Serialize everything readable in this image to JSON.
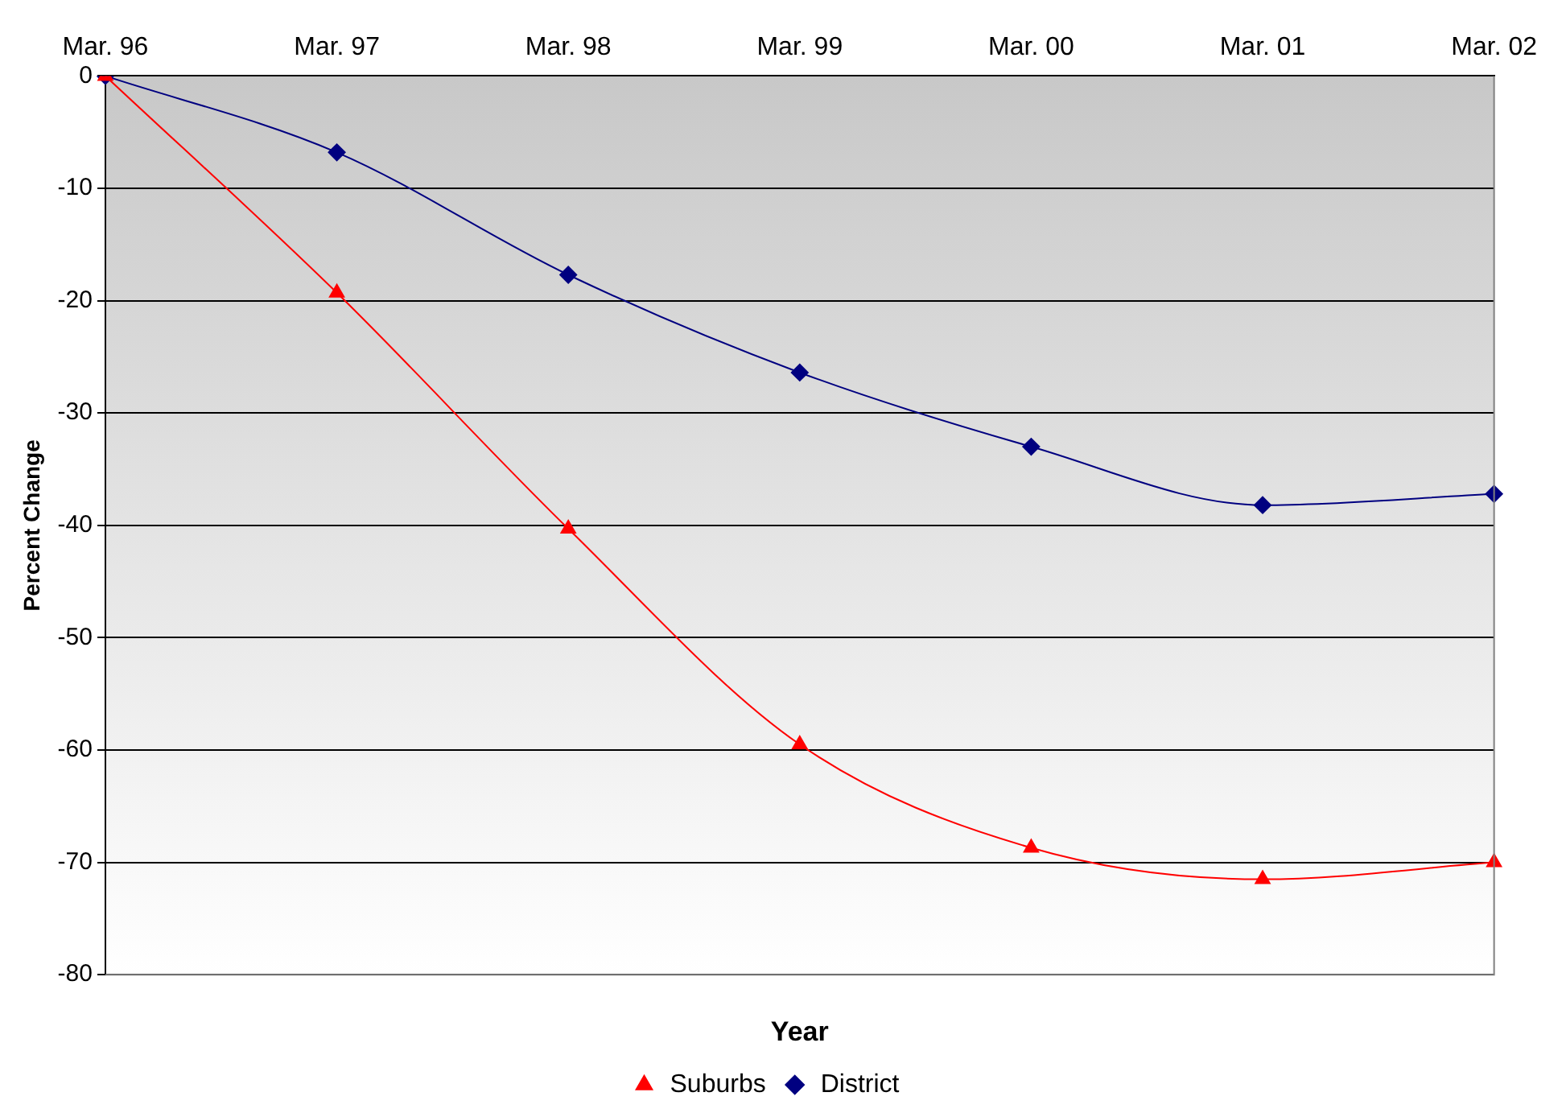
{
  "chart_data": {
    "type": "line",
    "xlabel": "Year",
    "ylabel": "Percent Change",
    "categories": [
      "Mar. 96",
      "Mar. 97",
      "Mar. 98",
      "Mar. 99",
      "Mar. 00",
      "Mar. 01",
      "Mar. 02"
    ],
    "series": [
      {
        "name": "Suburbs",
        "color": "#ff0000",
        "marker": "triangle",
        "values": [
          0,
          -19.3,
          -40.3,
          -59.5,
          -68.7,
          -71.5,
          -70.0
        ]
      },
      {
        "name": "District",
        "color": "#000080",
        "marker": "diamond",
        "values": [
          0,
          -6.8,
          -17.7,
          -26.4,
          -33.0,
          -38.2,
          -37.2
        ]
      }
    ],
    "ylim": [
      -80,
      0
    ],
    "yticks": [
      -80,
      -70,
      -60,
      -50,
      -40,
      -30,
      -20,
      -10,
      0
    ],
    "grid": "y",
    "legend": "bottom"
  }
}
